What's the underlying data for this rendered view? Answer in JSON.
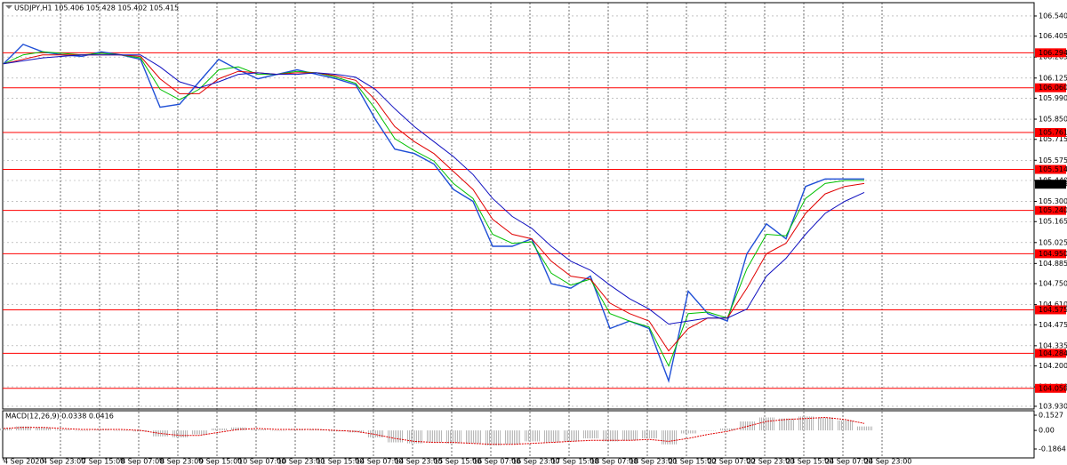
{
  "chart_data": [
    {
      "type": "line",
      "title": "USDJPY,H1 105.406 105.428 105.402 105.415",
      "categories": [
        "4 Sep 2020",
        null,
        "4 Sep 23:00",
        null,
        "7 Sep 15:00",
        null,
        "8 Sep 07:00",
        null,
        "8 Sep 23:00",
        null,
        "9 Sep 15:00",
        null,
        "10 Sep 07:00",
        null,
        "10 Sep 23:00",
        null,
        "11 Sep 15:00",
        null,
        "14 Sep 07:00",
        null,
        "14 Sep 23:00",
        null,
        "15 Sep 15:00",
        null,
        "16 Sep 07:00",
        null,
        "16 Sep 23:00",
        null,
        "17 Sep 15:00",
        null,
        "18 Sep 07:00",
        null,
        "18 Sep 23:00",
        null,
        "21 Sep 15:00",
        null,
        "22 Sep 07:00",
        null,
        "22 Sep 23:00",
        null,
        "23 Sep 15:00",
        null,
        "24 Sep 07:00",
        null,
        "24 Sep 23:00"
      ],
      "series": [
        {
          "color": "#1f4fd6",
          "values": [
            106.22,
            106.35,
            106.3,
            106.28,
            106.27,
            106.3,
            106.28,
            106.25,
            105.93,
            105.95,
            106.1,
            106.25,
            106.18,
            106.12,
            106.15,
            106.18,
            106.15,
            106.12,
            106.08,
            105.85,
            105.65,
            105.62,
            105.55,
            105.38,
            105.3,
            105.0,
            105.0,
            105.05,
            104.75,
            104.72,
            104.8,
            104.45,
            104.5,
            104.45,
            104.1,
            104.7,
            104.55,
            104.5,
            104.95,
            105.15,
            105.05,
            105.4,
            105.45,
            105.45,
            105.45
          ]
        },
        {
          "color": "#00c000",
          "values": [
            106.22,
            106.28,
            106.3,
            106.29,
            106.28,
            106.29,
            106.28,
            106.26,
            106.05,
            105.98,
            106.05,
            106.18,
            106.2,
            106.15,
            106.15,
            106.17,
            106.16,
            106.13,
            106.09,
            105.92,
            105.72,
            105.64,
            105.57,
            105.42,
            105.32,
            105.08,
            105.02,
            105.03,
            104.82,
            104.74,
            104.78,
            104.55,
            104.5,
            104.46,
            104.2,
            104.55,
            104.56,
            104.52,
            104.85,
            105.08,
            105.07,
            105.32,
            105.42,
            105.44,
            105.44
          ]
        },
        {
          "color": "#e00000",
          "values": [
            106.22,
            106.25,
            106.28,
            106.28,
            106.28,
            106.28,
            106.28,
            106.27,
            106.12,
            106.02,
            106.02,
            106.12,
            106.17,
            106.16,
            106.15,
            106.16,
            106.16,
            106.14,
            106.11,
            105.98,
            105.8,
            105.7,
            105.62,
            105.5,
            105.38,
            105.18,
            105.08,
            105.05,
            104.9,
            104.8,
            104.78,
            104.62,
            104.55,
            104.5,
            104.3,
            104.45,
            104.52,
            104.52,
            104.72,
            104.95,
            105.02,
            105.22,
            105.35,
            105.4,
            105.42
          ]
        },
        {
          "color": "#1010c0",
          "values": [
            106.22,
            106.24,
            106.26,
            106.27,
            106.28,
            106.28,
            106.28,
            106.28,
            106.2,
            106.1,
            106.06,
            106.1,
            106.15,
            106.16,
            106.15,
            106.15,
            106.16,
            106.15,
            106.13,
            106.05,
            105.92,
            105.8,
            105.7,
            105.6,
            105.48,
            105.32,
            105.2,
            105.12,
            105.0,
            104.9,
            104.84,
            104.74,
            104.65,
            104.58,
            104.48,
            104.5,
            104.52,
            104.52,
            104.58,
            104.8,
            104.92,
            105.08,
            105.22,
            105.3,
            105.36
          ]
        }
      ],
      "ylim": [
        103.912,
        106.629
      ],
      "yticks": [
        {
          "value": 106.54,
          "label": "106.540"
        },
        106.405,
        106.265,
        106.125,
        {
          "value": 105.99,
          "label": "105.990"
        },
        {
          "value": 105.85,
          "label": "105.850"
        },
        105.715,
        105.575,
        {
          "value": 105.44,
          "label": "105.440"
        },
        {
          "value": 105.3,
          "label": "105.300"
        },
        105.165,
        105.025,
        104.885,
        {
          "value": 104.75,
          "label": "104.750"
        },
        {
          "value": 104.61,
          "label": "104.610"
        },
        104.475,
        104.335,
        {
          "value": 104.2,
          "label": "104.200"
        },
        {
          "value": 104.06,
          "label": "104.060"
        },
        {
          "value": 103.93,
          "label": "103.930"
        }
      ],
      "levels": [
        106.294,
        {
          "value": 106.06,
          "label": "106.060"
        },
        105.761,
        105.514,
        {
          "value": 105.24,
          "label": "105.240"
        },
        {
          "value": 104.95,
          "label": "104.950"
        },
        104.575,
        104.284,
        {
          "value": 104.05,
          "label": "104.050"
        }
      ],
      "level_color": "#ff0000",
      "current_price": 105.415,
      "grid": true
    },
    {
      "type": "bar",
      "title": "MACD(12,26,9) 0.0338 0.0416",
      "values": [
        0.02,
        0.04,
        0.03,
        0.01,
        0.0,
        0.01,
        0.0,
        -0.01,
        -0.06,
        -0.07,
        -0.04,
        0.02,
        0.03,
        0.01,
        0.0,
        0.01,
        0.01,
        -0.01,
        -0.02,
        -0.07,
        -0.12,
        -0.13,
        -0.12,
        -0.13,
        -0.13,
        -0.15,
        -0.14,
        -0.11,
        -0.12,
        -0.11,
        -0.08,
        -0.11,
        -0.1,
        -0.08,
        -0.14,
        -0.03,
        0.0,
        0.02,
        0.09,
        0.13,
        0.12,
        0.14,
        0.13,
        0.1,
        0.04
      ],
      "color": "#b8b8b8",
      "signal": {
        "color": "#e00000",
        "values": [
          0.02,
          0.03,
          0.03,
          0.02,
          0.01,
          0.01,
          0.01,
          0.0,
          -0.03,
          -0.05,
          -0.05,
          -0.02,
          0.01,
          0.02,
          0.01,
          0.01,
          0.01,
          0.0,
          -0.01,
          -0.04,
          -0.08,
          -0.11,
          -0.12,
          -0.12,
          -0.13,
          -0.14,
          -0.14,
          -0.13,
          -0.12,
          -0.11,
          -0.1,
          -0.1,
          -0.1,
          -0.09,
          -0.11,
          -0.08,
          -0.04,
          -0.01,
          0.04,
          0.09,
          0.11,
          0.12,
          0.13,
          0.11,
          0.07
        ]
      },
      "ylim": [
        -0.2757,
        0.1973
      ],
      "yticks": [
        0.1527,
        {
          "value": 0,
          "label": "0.00"
        },
        -0.1864
      ]
    }
  ]
}
